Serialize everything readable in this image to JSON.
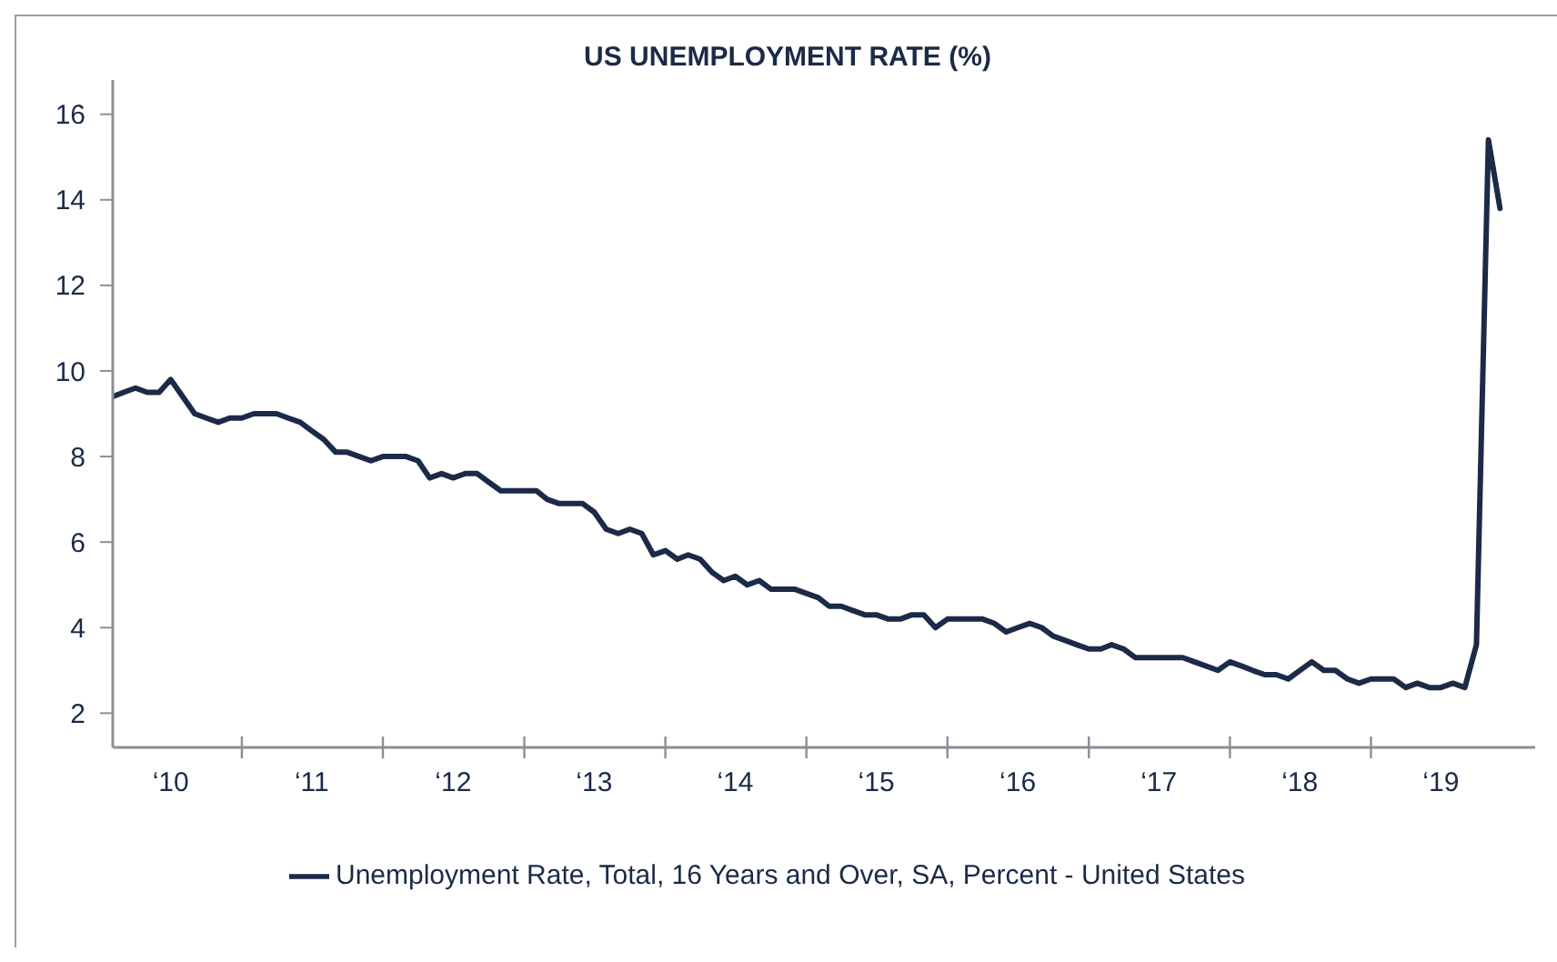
{
  "chart_data": {
    "type": "line",
    "title": "US UNEMPLOYMENT RATE (%)",
    "x": [
      "2010-02",
      "2010-03",
      "2010-04",
      "2010-05",
      "2010-06",
      "2010-07",
      "2010-08",
      "2010-09",
      "2010-10",
      "2010-11",
      "2010-12",
      "2011-01",
      "2011-02",
      "2011-03",
      "2011-04",
      "2011-05",
      "2011-06",
      "2011-07",
      "2011-08",
      "2011-09",
      "2011-10",
      "2011-11",
      "2011-12",
      "2012-01",
      "2012-02",
      "2012-03",
      "2012-04",
      "2012-05",
      "2012-06",
      "2012-07",
      "2012-08",
      "2012-09",
      "2012-10",
      "2012-11",
      "2012-12",
      "2013-01",
      "2013-02",
      "2013-03",
      "2013-04",
      "2013-05",
      "2013-06",
      "2013-07",
      "2013-08",
      "2013-09",
      "2013-10",
      "2013-11",
      "2013-12",
      "2014-01",
      "2014-02",
      "2014-03",
      "2014-04",
      "2014-05",
      "2014-06",
      "2014-07",
      "2014-08",
      "2014-09",
      "2014-10",
      "2014-11",
      "2014-12",
      "2015-01",
      "2015-02",
      "2015-03",
      "2015-04",
      "2015-05",
      "2015-06",
      "2015-07",
      "2015-08",
      "2015-09",
      "2015-10",
      "2015-11",
      "2015-12",
      "2016-01",
      "2016-02",
      "2016-03",
      "2016-04",
      "2016-05",
      "2016-06",
      "2016-07",
      "2016-08",
      "2016-09",
      "2016-10",
      "2016-11",
      "2016-12",
      "2017-01",
      "2017-02",
      "2017-03",
      "2017-04",
      "2017-05",
      "2017-06",
      "2017-07",
      "2017-08",
      "2017-09",
      "2017-10",
      "2017-11",
      "2017-12",
      "2018-01",
      "2018-02",
      "2018-03",
      "2018-04",
      "2018-05",
      "2018-06",
      "2018-07",
      "2018-08",
      "2018-09",
      "2018-10",
      "2018-11",
      "2018-12",
      "2019-01",
      "2019-02",
      "2019-03",
      "2019-04",
      "2019-05",
      "2019-06",
      "2019-07",
      "2019-08",
      "2019-09",
      "2019-10",
      "2019-11",
      "2019-12"
    ],
    "series": [
      {
        "name": "Unemployment Rate, Total, 16 Years and Over, SA, Percent - United States",
        "color": "#1b2a47",
        "values": [
          9.4,
          9.5,
          9.6,
          9.5,
          9.5,
          9.8,
          9.4,
          9.0,
          8.9,
          8.8,
          8.9,
          8.9,
          9.0,
          9.0,
          9.0,
          8.9,
          8.8,
          8.6,
          8.4,
          8.1,
          8.1,
          8.0,
          7.9,
          8.0,
          8.0,
          8.0,
          7.9,
          7.5,
          7.6,
          7.5,
          7.6,
          7.6,
          7.4,
          7.2,
          7.2,
          7.2,
          7.2,
          7.0,
          6.9,
          6.9,
          6.9,
          6.7,
          6.3,
          6.2,
          6.3,
          6.2,
          5.7,
          5.8,
          5.6,
          5.7,
          5.6,
          5.3,
          5.1,
          5.2,
          5.0,
          5.1,
          4.9,
          4.9,
          4.9,
          4.8,
          4.7,
          4.5,
          4.5,
          4.4,
          4.3,
          4.3,
          4.2,
          4.2,
          4.3,
          4.3,
          4.0,
          4.2,
          4.2,
          4.2,
          4.2,
          4.1,
          3.9,
          4.0,
          4.1,
          4.0,
          3.8,
          3.7,
          3.6,
          3.5,
          3.5,
          3.6,
          3.5,
          3.3,
          3.3,
          3.3,
          3.3,
          3.3,
          3.2,
          3.1,
          3.0,
          3.2,
          3.1,
          3.0,
          2.9,
          2.9,
          2.8,
          3.0,
          3.2,
          3.0,
          3.0,
          2.8,
          2.7,
          2.8,
          2.8,
          2.8,
          2.6,
          2.7,
          2.6,
          2.6,
          2.7,
          2.6,
          3.6,
          15.4,
          13.8
        ]
      }
    ],
    "xlim": [
      "2010-02",
      "2020-03"
    ],
    "xticks": [
      {
        "value": "2010-07",
        "label": "‘10"
      },
      {
        "value": "2011",
        "label": null
      },
      {
        "value": "2011-07",
        "label": "‘11"
      },
      {
        "value": "2012",
        "label": null
      },
      {
        "value": "2012-07",
        "label": "‘12"
      },
      {
        "value": "2013",
        "label": null
      },
      {
        "value": "2013-07",
        "label": "‘13"
      },
      {
        "value": "2014",
        "label": null
      },
      {
        "value": "2014-07",
        "label": "‘14"
      },
      {
        "value": "2015",
        "label": null
      },
      {
        "value": "2015-07",
        "label": "‘15"
      },
      {
        "value": "2016",
        "label": null
      },
      {
        "value": "2016-07",
        "label": "‘16"
      },
      {
        "value": "2017",
        "label": null
      },
      {
        "value": "2017-07",
        "label": "‘17"
      },
      {
        "value": "2018",
        "label": null
      },
      {
        "value": "2018-07",
        "label": "‘18"
      },
      {
        "value": "2019",
        "label": null
      },
      {
        "value": "2019-07",
        "label": "‘19"
      }
    ],
    "ylim": [
      1.2,
      16.8
    ],
    "yticks": [
      2,
      4,
      6,
      8,
      10,
      12,
      14,
      16
    ],
    "legend": "bottom",
    "marker": "none",
    "line_style": "solid"
  }
}
